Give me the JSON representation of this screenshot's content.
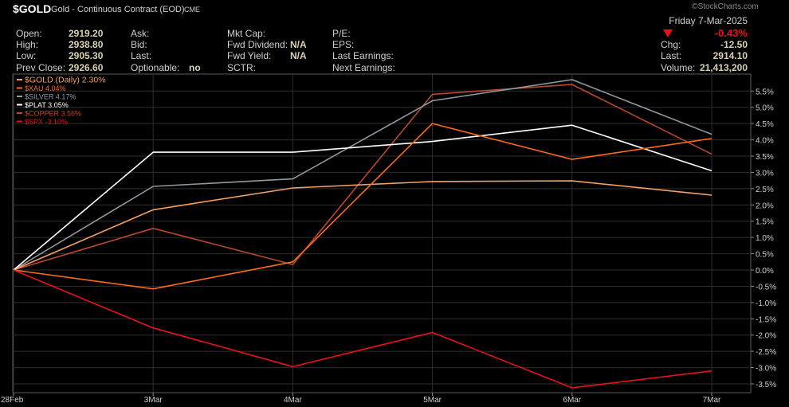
{
  "header": {
    "symbol": "$GOLD",
    "description": "Gold - Continuous Contract (EOD)",
    "exchange": "CME",
    "watermark": "©StockCharts.com",
    "date": "Friday  7-Mar-2025"
  },
  "quote": {
    "col1": [
      {
        "label": "Open:",
        "value": "2919.20"
      },
      {
        "label": "High:",
        "value": "2938.80"
      },
      {
        "label": "Low:",
        "value": "2905.30"
      },
      {
        "label": "Prev Close:",
        "value": "2926.60"
      }
    ],
    "col2": [
      {
        "label": "Ask:",
        "value": ""
      },
      {
        "label": "Bid:",
        "value": ""
      },
      {
        "label": "Last:",
        "value": ""
      },
      {
        "label": "Optionable:",
        "value": "no"
      }
    ],
    "col3": [
      {
        "label": "Mkt Cap:",
        "value": ""
      },
      {
        "label": "Fwd Dividend:",
        "value": "N/A"
      },
      {
        "label": "Fwd Yield:",
        "value": "N/A"
      },
      {
        "label": "SCTR:",
        "value": ""
      }
    ],
    "col4": [
      {
        "label": "P/E:",
        "value": ""
      },
      {
        "label": "EPS:",
        "value": ""
      },
      {
        "label": "Last Earnings:",
        "value": ""
      },
      {
        "label": "Next Earnings:",
        "value": ""
      }
    ],
    "right": {
      "change_pct": "-0.43%",
      "chg_label": "Chg:",
      "chg_value": "-12.50",
      "last_label": "Last:",
      "last_value": "2914.10",
      "volume_label": "Volume:",
      "volume_value": "21,413,200"
    }
  },
  "colors": {
    "background": "#000000",
    "grid": "#2e2e2e",
    "axis_text": "#cfcfcf",
    "down": "#e8101a",
    "label_value": "#d9d0b0"
  },
  "chart_data": {
    "type": "line",
    "x": [
      "28Feb",
      "3Mar",
      "4Mar",
      "5Mar",
      "6Mar",
      "7Mar"
    ],
    "ylim": [
      -3.7,
      5.9
    ],
    "yticks": [
      5.5,
      5.0,
      4.5,
      4.0,
      3.5,
      3.0,
      2.5,
      2.0,
      1.5,
      1.0,
      0.5,
      0.0,
      -0.5,
      -1.0,
      -1.5,
      -2.0,
      -2.5,
      -3.0,
      -3.5
    ],
    "ytick_labels": [
      "5.5%",
      "5.0%",
      "4.5%",
      "4.0%",
      "3.5%",
      "3.0%",
      "2.5%",
      "2.0%",
      "1.5%",
      "1.0%",
      "0.5%",
      "0.0%",
      "-0.5%",
      "-1.0%",
      "-1.5%",
      "-2.0%",
      "-2.5%",
      "-3.0%",
      "-3.5%"
    ],
    "grid": true,
    "legend_position": "top-left",
    "series": [
      {
        "name": "$GOLD (Daily) 2.30%",
        "color": "#f2a060",
        "values": [
          0,
          1.85,
          2.52,
          2.72,
          2.74,
          2.3
        ]
      },
      {
        "name": "$XAU 4.04%",
        "color": "#ff6a1a",
        "values": [
          0,
          -0.58,
          0.25,
          4.5,
          3.4,
          4.04
        ]
      },
      {
        "name": "$SILVER 4.17%",
        "color": "#8f9aa2",
        "values": [
          0,
          2.57,
          2.8,
          5.2,
          5.85,
          4.17
        ]
      },
      {
        "name": "$PLAT 3.05%",
        "color": "#ffffff",
        "values": [
          0,
          3.62,
          3.62,
          3.95,
          4.45,
          3.05
        ]
      },
      {
        "name": "$COPPER 3.56%",
        "color": "#b8492a",
        "values": [
          0,
          1.28,
          0.17,
          5.4,
          5.7,
          3.56
        ]
      },
      {
        "name": "$SPX -3.10%",
        "color": "#e8101a",
        "values": [
          0,
          -1.78,
          -2.97,
          -1.92,
          -3.62,
          -3.1
        ]
      }
    ]
  }
}
